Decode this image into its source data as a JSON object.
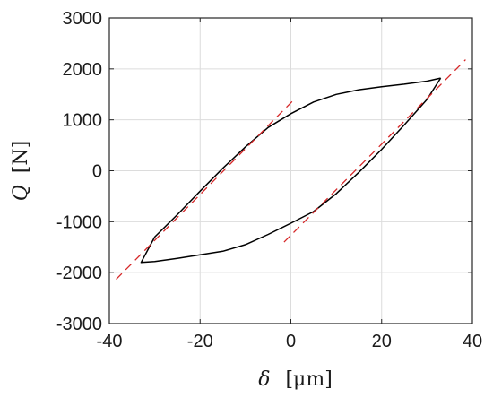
{
  "chart_data": {
    "type": "line",
    "title": "",
    "xlabel_symbol": "δ",
    "xlabel_unit": "[μm]",
    "ylabel_symbol": "Q",
    "ylabel_unit": "[N]",
    "xlim": [
      -40,
      40
    ],
    "ylim": [
      -3000,
      3000
    ],
    "xticks": [
      -40,
      -20,
      0,
      20,
      40
    ],
    "xtick_labels": [
      "-40",
      "-20",
      "0",
      "20",
      "40"
    ],
    "yticks": [
      -3000,
      -2000,
      -1000,
      0,
      1000,
      2000,
      3000
    ],
    "ytick_labels": [
      "-3000",
      "-2000",
      "-1000",
      "0",
      "1000",
      "2000",
      "3000"
    ],
    "grid": true,
    "legend": "none",
    "colors": {
      "loop": "#000000",
      "fit": "#d62728",
      "grid": "#dcdcdc",
      "axis": "#262626"
    },
    "series": [
      {
        "style": "solid",
        "x": [
          33,
          30,
          25,
          20,
          15,
          10,
          5,
          0,
          -5,
          -10,
          -15,
          -20,
          -25,
          -30,
          -33,
          -30,
          -25,
          -20,
          -15,
          -10,
          -5,
          0,
          5,
          10,
          15,
          20,
          25,
          30,
          33
        ],
        "y": [
          1820,
          1760,
          1700,
          1650,
          1590,
          1500,
          1350,
          1120,
          850,
          470,
          50,
          -400,
          -860,
          -1300,
          -1800,
          -1780,
          -1720,
          -1650,
          -1580,
          -1450,
          -1250,
          -1030,
          -800,
          -450,
          -30,
          420,
          900,
          1400,
          1820
        ]
      },
      {
        "style": "dashed",
        "x": [
          -38.5,
          0.5
        ],
        "y": [
          -2130,
          1380
        ]
      },
      {
        "style": "dashed",
        "x": [
          -1.5,
          38.5
        ],
        "y": [
          -1400,
          2180
        ]
      }
    ]
  }
}
